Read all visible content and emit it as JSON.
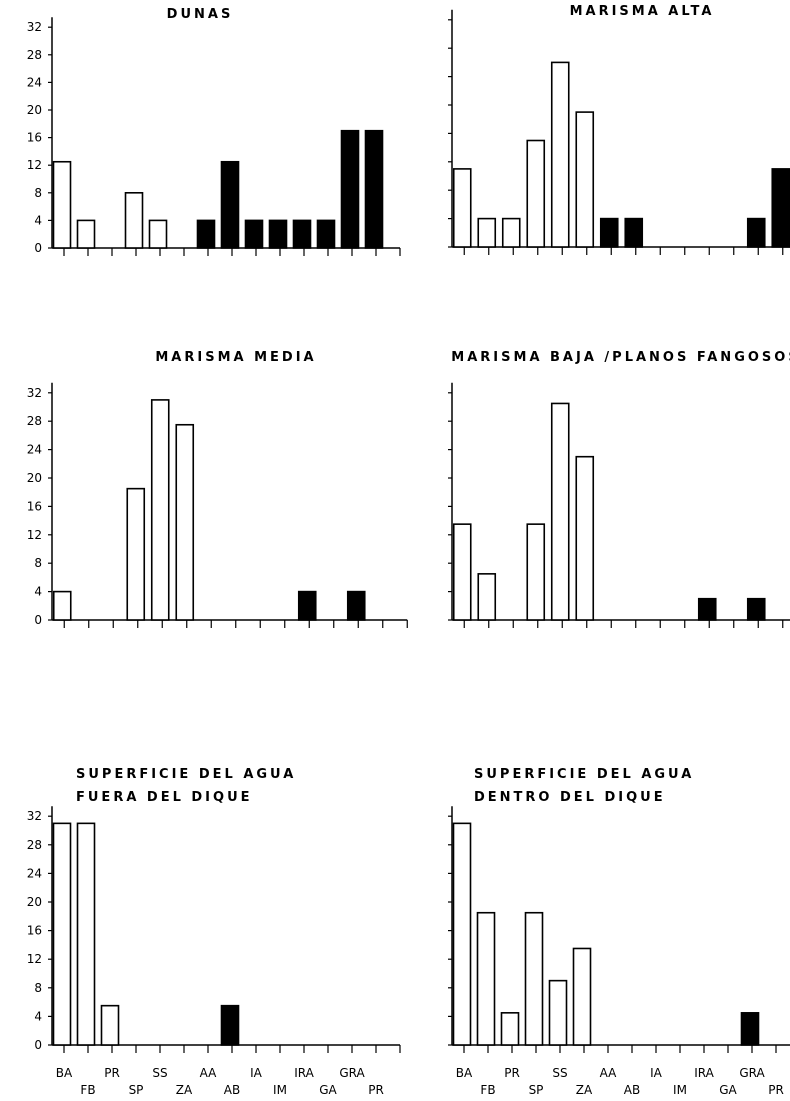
{
  "chart_data": [
    {
      "type": "bar",
      "title": [
        "DUNAS"
      ],
      "categories": [
        "BA",
        "FB",
        "PR",
        "SP",
        "SS",
        "ZA",
        "AA",
        "AB",
        "IA",
        "IM",
        "IRA",
        "GA",
        "GRA",
        "PR"
      ],
      "values": [
        12.5,
        4,
        0,
        8,
        4,
        0,
        4,
        12.5,
        4,
        4,
        4,
        4,
        17,
        17
      ],
      "filled": [
        false,
        false,
        false,
        false,
        false,
        false,
        true,
        true,
        true,
        true,
        true,
        true,
        true,
        true
      ],
      "yticks": [
        0,
        4,
        8,
        12,
        16,
        20,
        24,
        28,
        32
      ],
      "ylim": [
        0,
        32
      ]
    },
    {
      "type": "bar",
      "title": [
        "MARISMA  ALTA"
      ],
      "categories": [
        "BA",
        "FB",
        "PR",
        "SP",
        "SS",
        "ZA",
        "AA",
        "AB",
        "IA",
        "IM",
        "IRA",
        "GA",
        "GRA",
        "PR"
      ],
      "values": [
        11,
        4,
        4,
        15,
        26,
        19,
        4,
        4,
        0,
        0,
        0,
        0,
        4,
        11
      ],
      "filled": [
        false,
        false,
        false,
        false,
        false,
        false,
        true,
        true,
        true,
        true,
        true,
        true,
        true,
        true
      ],
      "yticks": [],
      "ylim": [
        0,
        32
      ]
    },
    {
      "type": "bar",
      "title": [
        "MARISMA  MEDIA"
      ],
      "categories": [
        "BA",
        "FB",
        "PR",
        "SP",
        "SS",
        "ZA",
        "AA",
        "AB",
        "IA",
        "IM",
        "IRA",
        "GA",
        "GRA",
        "PR"
      ],
      "values": [
        4,
        0,
        0,
        18.5,
        31,
        27.5,
        0,
        0,
        0,
        0,
        4,
        0,
        4,
        0
      ],
      "filled": [
        false,
        false,
        false,
        false,
        false,
        false,
        true,
        true,
        true,
        true,
        true,
        true,
        true,
        true
      ],
      "yticks": [
        0,
        4,
        8,
        12,
        16,
        20,
        24,
        28,
        32
      ],
      "ylim": [
        0,
        32
      ]
    },
    {
      "type": "bar",
      "title": [
        "MARISMA BAJA /PLANOS FANGOSOS"
      ],
      "categories": [
        "BA",
        "FB",
        "PR",
        "SP",
        "SS",
        "ZA",
        "AA",
        "AB",
        "IA",
        "IM",
        "IRA",
        "GA",
        "GRA",
        "PR"
      ],
      "values": [
        13.5,
        6.5,
        0,
        13.5,
        30.5,
        23,
        0,
        0,
        0,
        0,
        3,
        0,
        3,
        0
      ],
      "filled": [
        false,
        false,
        false,
        false,
        false,
        false,
        true,
        true,
        true,
        true,
        true,
        true,
        true,
        true
      ],
      "yticks": [],
      "ylim": [
        0,
        32
      ]
    },
    {
      "type": "bar",
      "title": [
        "SUPERFICIE DEL AGUA",
        "FUERA DEL DIQUE"
      ],
      "categories": [
        "BA",
        "FB",
        "PR",
        "SP",
        "SS",
        "ZA",
        "AA",
        "AB",
        "IA",
        "IM",
        "IRA",
        "GA",
        "GRA",
        "PR"
      ],
      "values": [
        31,
        31,
        5.5,
        0,
        0,
        0,
        0,
        5.5,
        0,
        0,
        0,
        0,
        0,
        0
      ],
      "filled": [
        false,
        false,
        false,
        false,
        false,
        false,
        true,
        true,
        true,
        true,
        true,
        true,
        true,
        true
      ],
      "yticks": [
        0,
        4,
        8,
        12,
        16,
        20,
        24,
        28,
        32
      ],
      "ylim": [
        0,
        32
      ]
    },
    {
      "type": "bar",
      "title": [
        "SUPERFICIE DEL AGUA",
        "DENTRO DEL DIQUE"
      ],
      "categories": [
        "BA",
        "FB",
        "PR",
        "SP",
        "SS",
        "ZA",
        "AA",
        "AB",
        "IA",
        "IM",
        "IRA",
        "GA",
        "GRA",
        "PR"
      ],
      "values": [
        31,
        18.5,
        4.5,
        18.5,
        9,
        13.5,
        0,
        0,
        0,
        0,
        0,
        0,
        4.5,
        0
      ],
      "filled": [
        false,
        false,
        false,
        false,
        false,
        false,
        true,
        true,
        true,
        true,
        true,
        true,
        true,
        true
      ],
      "yticks": [],
      "ylim": [
        0,
        32
      ]
    }
  ]
}
